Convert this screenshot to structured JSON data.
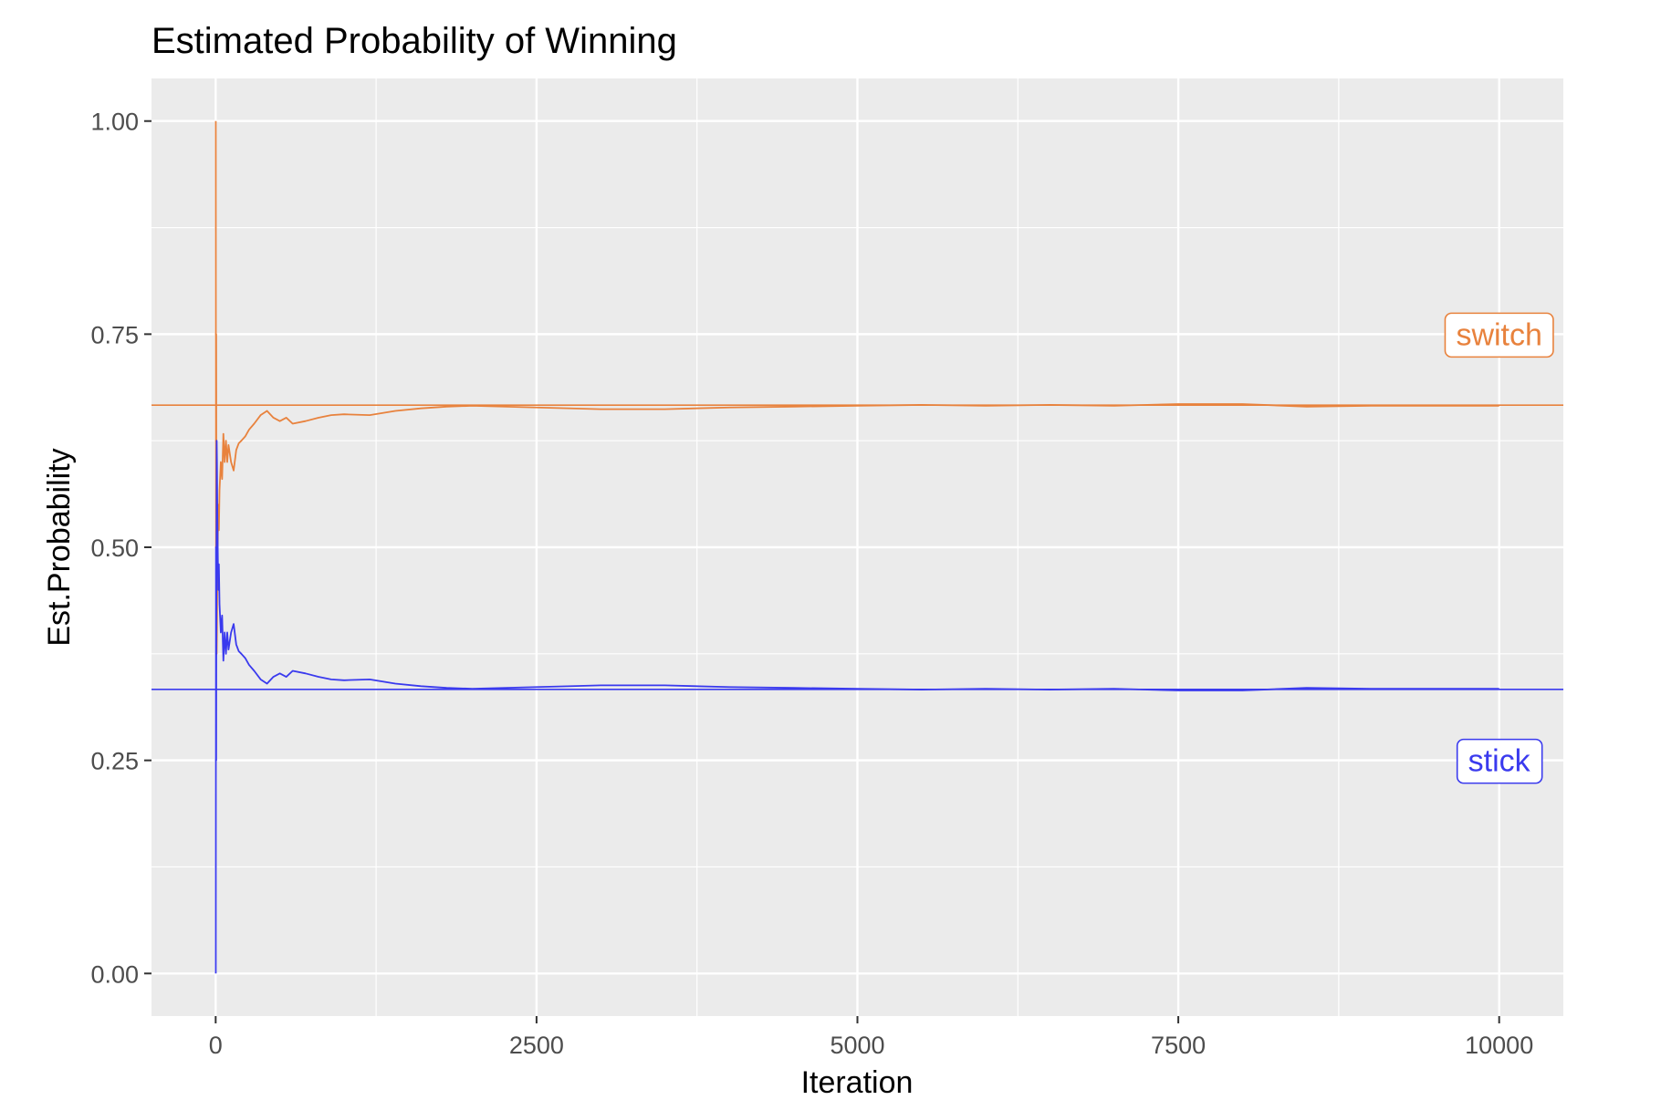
{
  "chart_data": {
    "type": "line",
    "title": "Estimated Probability of Winning",
    "xlabel": "Iteration",
    "ylabel": "Est.Probability",
    "xlim": [
      -500,
      10500
    ],
    "ylim": [
      -0.05,
      1.05
    ],
    "x_ticks": [
      0,
      2500,
      5000,
      7500,
      10000
    ],
    "x_tick_labels": [
      "0",
      "2500",
      "5000",
      "7500",
      "10000"
    ],
    "y_ticks": [
      0,
      0.25,
      0.5,
      0.75,
      1
    ],
    "y_tick_labels": [
      "0.00",
      "0.25",
      "0.50",
      "0.75",
      "1.00"
    ],
    "grid": true,
    "legend": "none",
    "series": [
      {
        "name": "switch",
        "color": "#E8823D",
        "x": [
          1,
          2,
          3,
          4,
          5,
          6,
          8,
          10,
          13,
          16,
          20,
          25,
          30,
          40,
          50,
          60,
          70,
          80,
          90,
          100,
          120,
          140,
          160,
          180,
          200,
          230,
          260,
          300,
          350,
          400,
          450,
          500,
          550,
          600,
          700,
          800,
          900,
          1000,
          1200,
          1400,
          1600,
          1800,
          2000,
          2500,
          3000,
          3500,
          4000,
          4500,
          5000,
          5500,
          6000,
          6500,
          7000,
          7500,
          8000,
          8500,
          9000,
          9500,
          10000
        ],
        "values": [
          1.0,
          0.5,
          0.667,
          0.75,
          0.6,
          0.5,
          0.375,
          0.4,
          0.462,
          0.5,
          0.55,
          0.52,
          0.567,
          0.6,
          0.58,
          0.633,
          0.6,
          0.625,
          0.6,
          0.62,
          0.6,
          0.59,
          0.614,
          0.622,
          0.625,
          0.63,
          0.638,
          0.645,
          0.655,
          0.66,
          0.652,
          0.648,
          0.652,
          0.645,
          0.648,
          0.652,
          0.655,
          0.656,
          0.655,
          0.66,
          0.663,
          0.665,
          0.666,
          0.664,
          0.662,
          0.662,
          0.664,
          0.665,
          0.666,
          0.667,
          0.666,
          0.667,
          0.666,
          0.668,
          0.668,
          0.665,
          0.666,
          0.666,
          0.666
        ]
      },
      {
        "name": "stick",
        "color": "#3A3AEE",
        "x": [
          1,
          2,
          3,
          4,
          5,
          6,
          8,
          10,
          13,
          16,
          20,
          25,
          30,
          40,
          50,
          60,
          70,
          80,
          90,
          100,
          120,
          140,
          160,
          180,
          200,
          230,
          260,
          300,
          350,
          400,
          450,
          500,
          550,
          600,
          700,
          800,
          900,
          1000,
          1200,
          1400,
          1600,
          1800,
          2000,
          2500,
          3000,
          3500,
          4000,
          4500,
          5000,
          5500,
          6000,
          6500,
          7000,
          7500,
          8000,
          8500,
          9000,
          9500,
          10000
        ],
        "values": [
          0.0,
          0.5,
          0.333,
          0.25,
          0.4,
          0.5,
          0.625,
          0.6,
          0.538,
          0.5,
          0.45,
          0.48,
          0.433,
          0.4,
          0.42,
          0.367,
          0.4,
          0.375,
          0.4,
          0.38,
          0.4,
          0.41,
          0.386,
          0.378,
          0.375,
          0.37,
          0.362,
          0.355,
          0.345,
          0.34,
          0.348,
          0.352,
          0.348,
          0.355,
          0.352,
          0.348,
          0.345,
          0.344,
          0.345,
          0.34,
          0.337,
          0.335,
          0.334,
          0.336,
          0.338,
          0.338,
          0.336,
          0.335,
          0.334,
          0.333,
          0.334,
          0.333,
          0.334,
          0.332,
          0.332,
          0.335,
          0.334,
          0.334,
          0.334
        ]
      }
    ],
    "reference_lines": [
      {
        "series": "switch",
        "y": 0.6667,
        "color": "#E8823D"
      },
      {
        "series": "stick",
        "y": 0.3333,
        "color": "#3A3AEE"
      }
    ],
    "annotations": [
      {
        "text": "switch",
        "x": 10000,
        "y": 0.75,
        "color": "#E8823D"
      },
      {
        "text": "stick",
        "x": 10000,
        "y": 0.25,
        "color": "#3A3AEE"
      }
    ]
  }
}
